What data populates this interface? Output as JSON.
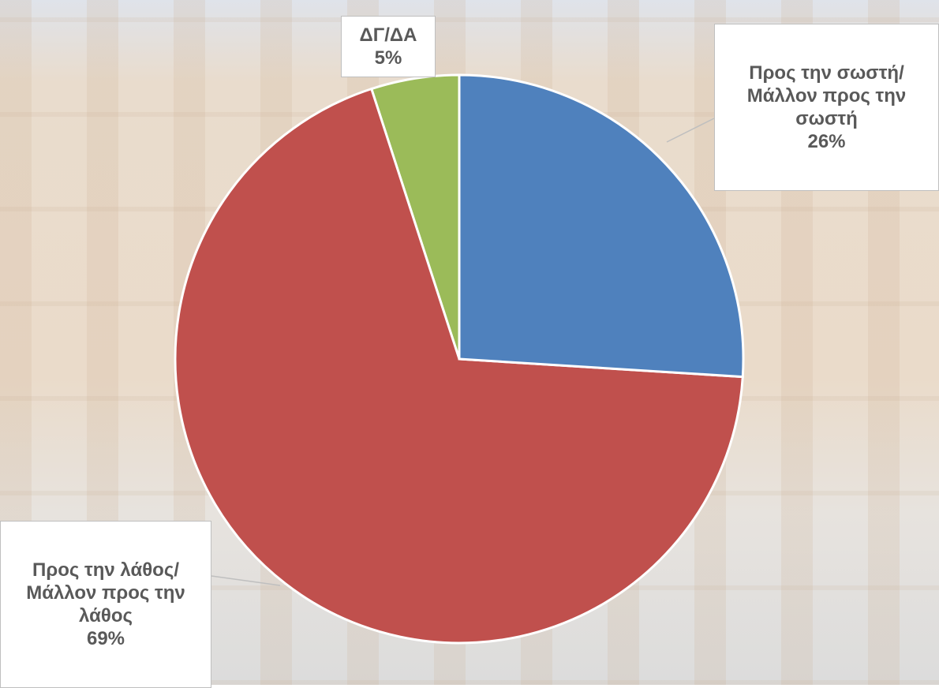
{
  "chart_data": {
    "type": "pie",
    "categories": [
      "Προς την σωστή/Μάλλον προς την σωστή",
      "Προς την λάθος/Μάλλον προς την λάθος",
      "ΔΓ/ΔΑ"
    ],
    "values": [
      26,
      69,
      5
    ],
    "value_labels": [
      "26%",
      "69%",
      "5%"
    ],
    "colors": [
      "#4f81bd",
      "#c0504d",
      "#9bbb59"
    ]
  }
}
